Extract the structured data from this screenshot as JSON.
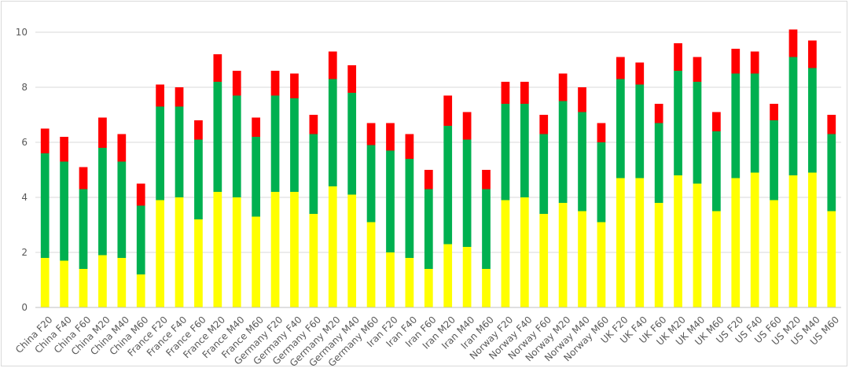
{
  "chart_data": {
    "type": "bar",
    "stacked": true,
    "title": "",
    "xlabel": "",
    "ylabel": "",
    "ylim": [
      0,
      10
    ],
    "yticks": [
      0,
      2,
      4,
      6,
      8,
      10
    ],
    "grid": true,
    "legend": "none",
    "categories": [
      "China F20",
      "China F40",
      "China F60",
      "China M20",
      "China M40",
      "China M60",
      "France F20",
      "France F40",
      "France F60",
      "France M20",
      "France M40",
      "France M60",
      "Germany F20",
      "Germany F40",
      "Germany F60",
      "Germany M20",
      "Germany M40",
      "Germany M60",
      "Iran F20",
      "Iran F40",
      "Iran F60",
      "Iran M20",
      "Iran M40",
      "Iran M60",
      "Norway F20",
      "Norway F40",
      "Norway F60",
      "Norway M20",
      "Norway M40",
      "Norway M60",
      "UK F20",
      "UK F40",
      "UK F60",
      "UK M20",
      "UK M40",
      "UK M60",
      "US F20",
      "US F40",
      "US F60",
      "US M20",
      "US M40",
      "US M60"
    ],
    "series": [
      {
        "color": "#ffff00",
        "values": [
          1.8,
          1.7,
          1.4,
          1.9,
          1.8,
          1.2,
          3.9,
          4.0,
          3.2,
          4.2,
          4.0,
          3.3,
          4.2,
          4.2,
          3.4,
          4.4,
          4.1,
          3.1,
          2.0,
          1.8,
          1.4,
          2.3,
          2.2,
          1.4,
          3.9,
          4.0,
          3.4,
          3.8,
          3.5,
          3.1,
          4.7,
          4.7,
          3.8,
          4.8,
          4.5,
          3.5,
          4.7,
          4.9,
          3.9,
          4.8,
          4.9,
          3.5
        ]
      },
      {
        "color": "#00b050",
        "values": [
          3.8,
          3.6,
          2.9,
          3.9,
          3.5,
          2.5,
          3.4,
          3.3,
          2.9,
          4.0,
          3.7,
          2.9,
          3.5,
          3.4,
          2.9,
          3.9,
          3.7,
          2.8,
          3.7,
          3.6,
          2.9,
          4.3,
          3.9,
          2.9,
          3.5,
          3.4,
          2.9,
          3.7,
          3.6,
          2.9,
          3.6,
          3.4,
          2.9,
          3.8,
          3.7,
          2.9,
          3.8,
          3.6,
          2.9,
          4.3,
          3.8,
          2.8
        ]
      },
      {
        "color": "#ff0000",
        "values": [
          0.9,
          0.9,
          0.8,
          1.1,
          1.0,
          0.8,
          0.8,
          0.7,
          0.7,
          1.0,
          0.9,
          0.7,
          0.9,
          0.9,
          0.7,
          1.0,
          1.0,
          0.8,
          1.0,
          0.9,
          0.7,
          1.1,
          1.0,
          0.7,
          0.8,
          0.8,
          0.7,
          1.0,
          0.9,
          0.7,
          0.8,
          0.8,
          0.7,
          1.0,
          0.9,
          0.7,
          0.9,
          0.8,
          0.6,
          1.0,
          1.0,
          0.7
        ]
      }
    ]
  }
}
